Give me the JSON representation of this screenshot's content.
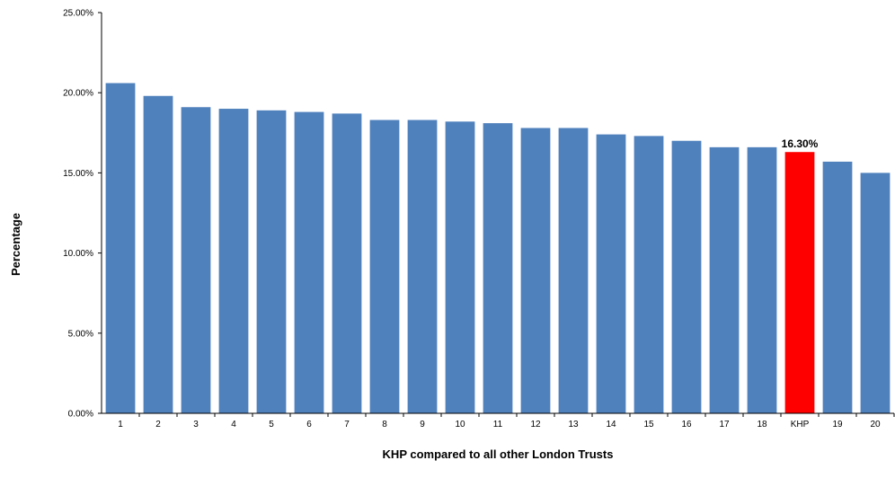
{
  "chart_data": {
    "type": "bar",
    "xlabel": "KHP compared to all other London Trusts",
    "ylabel": "Percentage",
    "ylim": [
      0,
      25
    ],
    "yticks": [
      0,
      5,
      10,
      15,
      20,
      25
    ],
    "ytick_labels": [
      "0.00%",
      "5.00%",
      "10.00%",
      "15.00%",
      "20.00%",
      "25.00%"
    ],
    "grid": false,
    "legend": "none",
    "categories": [
      "1",
      "2",
      "3",
      "4",
      "5",
      "6",
      "7",
      "8",
      "9",
      "10",
      "11",
      "12",
      "13",
      "14",
      "15",
      "16",
      "17",
      "18",
      "KHP",
      "19",
      "20"
    ],
    "values": [
      20.6,
      19.8,
      19.1,
      19.0,
      18.9,
      18.8,
      18.7,
      18.3,
      18.3,
      18.2,
      18.1,
      17.8,
      17.8,
      17.4,
      17.3,
      17.0,
      16.6,
      16.6,
      16.3,
      15.7,
      15.0
    ],
    "highlight": {
      "category": "KHP",
      "label": "16.30%"
    },
    "colors": {
      "bar": "#4f81bd",
      "highlight": "#ff0000"
    }
  }
}
